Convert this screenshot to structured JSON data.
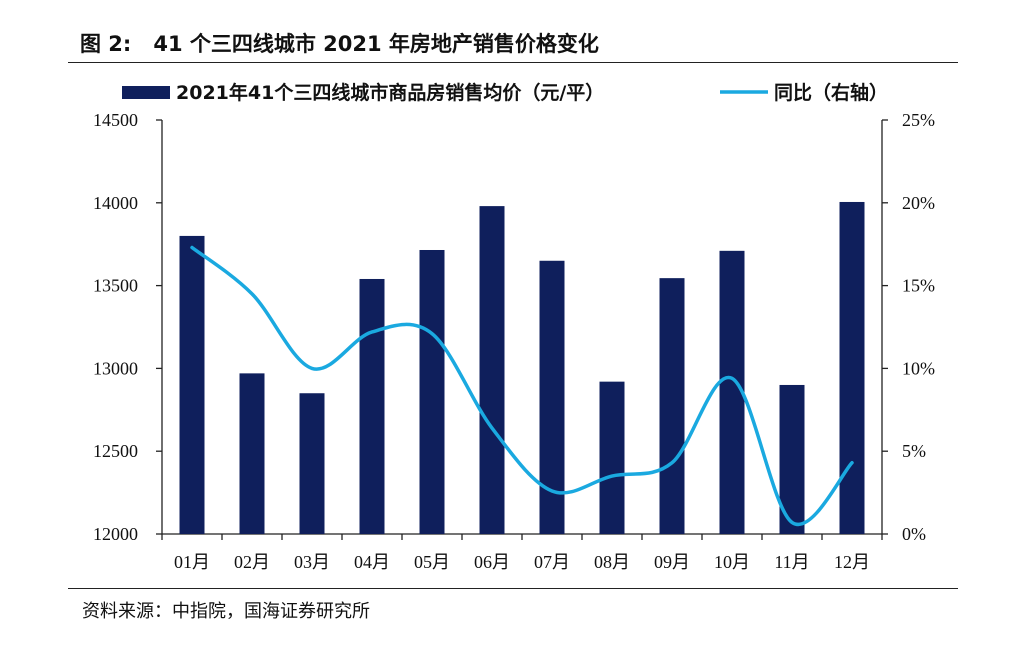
{
  "figure": {
    "label": "图 2:",
    "title": "41 个三四线城市 2021 年房地产销售价格变化",
    "source": "资料来源：中指院，国海证券研究所"
  },
  "colors": {
    "bar": "#0f1f5c",
    "line": "#1aa9e0",
    "axis": "#222222"
  },
  "chart_data": {
    "type": "bar",
    "categories": [
      "01月",
      "02月",
      "03月",
      "04月",
      "05月",
      "06月",
      "07月",
      "08月",
      "09月",
      "10月",
      "11月",
      "12月"
    ],
    "series": [
      {
        "name": "2021年41个三四线城市商品房销售均价（元/平）",
        "type": "bar",
        "axis": "left",
        "values": [
          13800,
          12970,
          12850,
          13540,
          13715,
          13980,
          13650,
          12920,
          13545,
          13710,
          12900,
          14005
        ]
      },
      {
        "name": "同比（右轴）",
        "type": "line",
        "axis": "right",
        "values": [
          17.3,
          14.5,
          10.0,
          12.2,
          12.1,
          6.4,
          2.6,
          3.5,
          4.3,
          9.4,
          0.7,
          4.3
        ]
      }
    ],
    "y_left": {
      "min": 12000,
      "max": 14500,
      "step": 500,
      "ticks": [
        "12000",
        "12500",
        "13000",
        "13500",
        "14000",
        "14500"
      ]
    },
    "y_right": {
      "min": 0,
      "max": 25,
      "step": 5,
      "ticks": [
        "0%",
        "5%",
        "10%",
        "15%",
        "20%",
        "25%"
      ]
    },
    "legend_position": "top",
    "grid": false
  }
}
